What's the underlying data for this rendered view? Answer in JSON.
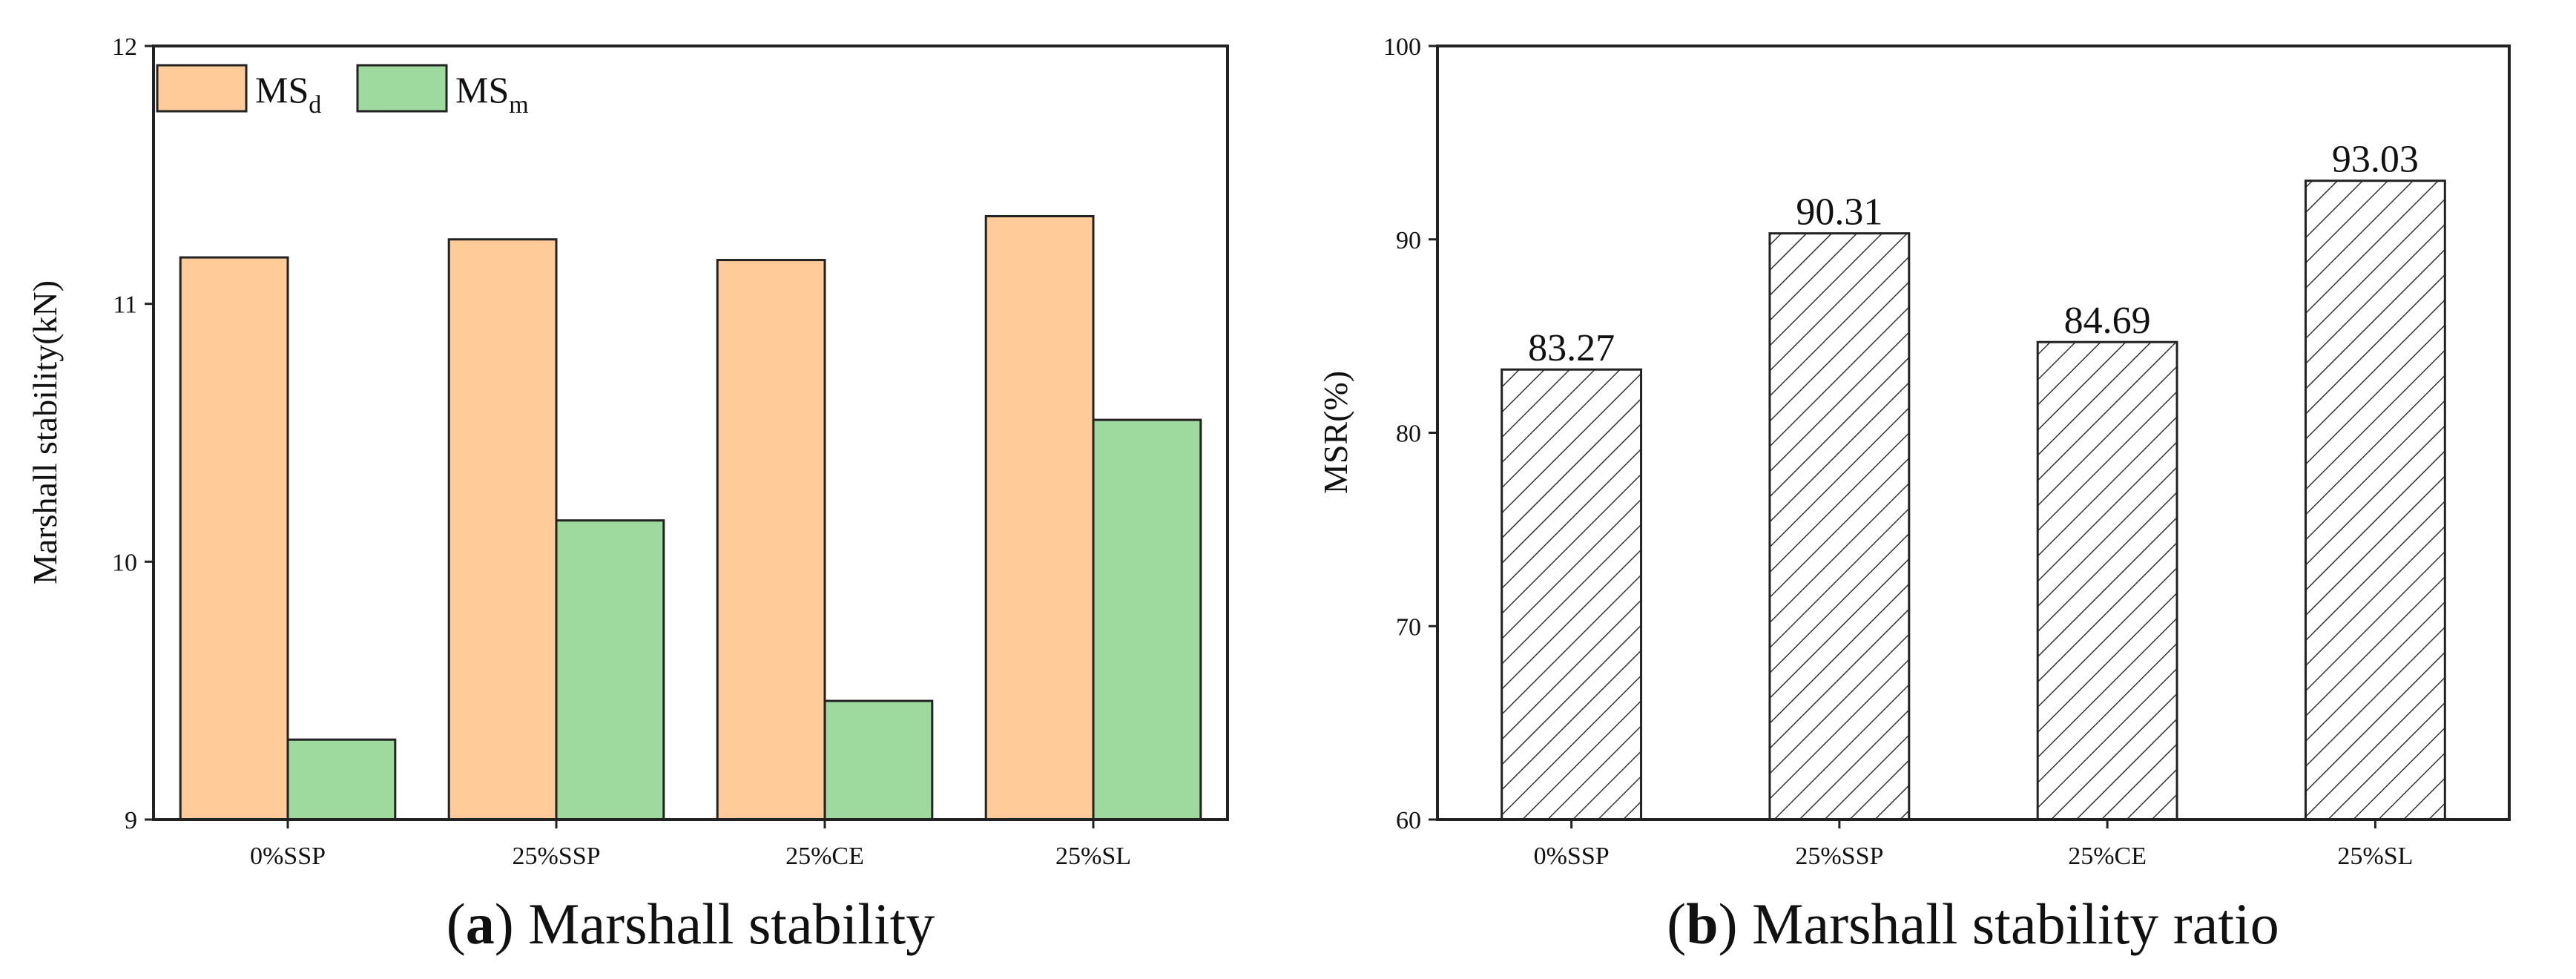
{
  "chart_data": [
    {
      "type": "bar",
      "title": "",
      "caption_letter": "a",
      "caption_text": "Marshall stability",
      "xlabel": "",
      "ylabel": "Marshall stability(kN)",
      "ylim": [
        9,
        12
      ],
      "yticks": [
        9,
        10,
        11,
        12
      ],
      "categories": [
        "0%SSP",
        "25%SSP",
        "25%CE",
        "25%SL"
      ],
      "series": [
        {
          "name": "MS",
          "subscript": "d",
          "values": [
            11.18,
            11.25,
            11.17,
            11.34
          ],
          "color": "#FFCC99"
        },
        {
          "name": "MS",
          "subscript": "m",
          "values": [
            9.31,
            10.16,
            9.46,
            10.55
          ],
          "color": "#9ED99E"
        }
      ],
      "legend": "top-left"
    },
    {
      "type": "bar",
      "title": "",
      "caption_letter": "b",
      "caption_text": "Marshall stability ratio",
      "xlabel": "",
      "ylabel": "MSR(%)",
      "ylim": [
        60,
        100
      ],
      "yticks": [
        60,
        70,
        80,
        90,
        100
      ],
      "categories": [
        "0%SSP",
        "25%SSP",
        "25%CE",
        "25%SL"
      ],
      "values": [
        83.27,
        90.31,
        84.69,
        93.03
      ],
      "data_labels": [
        "83.27",
        "90.31",
        "84.69",
        "93.03"
      ],
      "fill": "hatched"
    }
  ]
}
